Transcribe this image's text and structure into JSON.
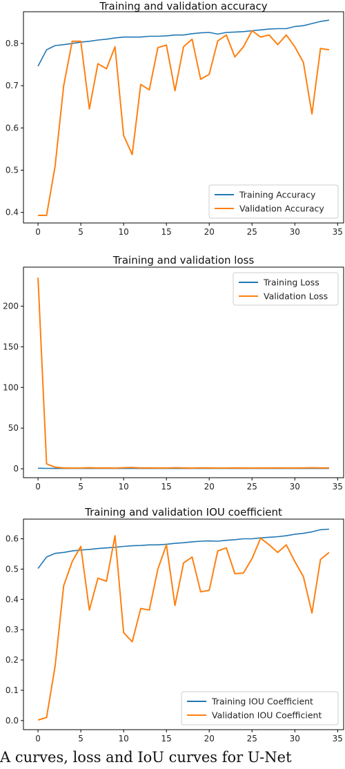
{
  "caption": "A curves, loss and IoU curves for U-Net",
  "chart_data": [
    {
      "type": "line",
      "title": "Training and validation accuracy",
      "xlabel": "",
      "ylabel": "",
      "xlim": [
        -1.7,
        35.7
      ],
      "ylim": [
        0.375,
        0.875
      ],
      "xticks": [
        0,
        5,
        10,
        15,
        20,
        25,
        30,
        35
      ],
      "yticks": [
        0.4,
        0.5,
        0.6,
        0.7,
        0.8
      ],
      "ytick_labels": [
        "0.4",
        "0.5",
        "0.6",
        "0.7",
        "0.8"
      ],
      "legend_position": "lower-right",
      "grid": false,
      "x": [
        0,
        1,
        2,
        3,
        4,
        5,
        6,
        7,
        8,
        9,
        10,
        11,
        12,
        13,
        14,
        15,
        16,
        17,
        18,
        19,
        20,
        21,
        22,
        23,
        24,
        25,
        26,
        27,
        28,
        29,
        30,
        31,
        32,
        33,
        34
      ],
      "series": [
        {
          "name": "Training Accuracy",
          "color": "#1f77b4",
          "values": [
            0.746,
            0.785,
            0.795,
            0.797,
            0.8,
            0.803,
            0.805,
            0.808,
            0.81,
            0.813,
            0.815,
            0.815,
            0.815,
            0.817,
            0.817,
            0.818,
            0.82,
            0.82,
            0.823,
            0.825,
            0.826,
            0.822,
            0.826,
            0.827,
            0.828,
            0.83,
            0.832,
            0.834,
            0.835,
            0.835,
            0.84,
            0.842,
            0.847,
            0.852,
            0.855
          ]
        },
        {
          "name": "Validation Accuracy",
          "color": "#ff7f0e",
          "values": [
            0.393,
            0.393,
            0.51,
            0.7,
            0.805,
            0.805,
            0.645,
            0.752,
            0.74,
            0.792,
            0.582,
            0.537,
            0.703,
            0.69,
            0.79,
            0.796,
            0.688,
            0.792,
            0.81,
            0.715,
            0.727,
            0.806,
            0.82,
            0.768,
            0.792,
            0.83,
            0.815,
            0.82,
            0.797,
            0.82,
            0.792,
            0.755,
            0.633,
            0.788,
            0.785
          ]
        }
      ]
    },
    {
      "type": "line",
      "title": "Training and validation loss",
      "xlabel": "",
      "ylabel": "",
      "xlim": [
        -1.7,
        35.7
      ],
      "ylim": [
        -11,
        248
      ],
      "xticks": [
        0,
        5,
        10,
        15,
        20,
        25,
        30,
        35
      ],
      "yticks": [
        0,
        50,
        100,
        150,
        200
      ],
      "ytick_labels": [
        "0",
        "50",
        "100",
        "150",
        "200"
      ],
      "legend_position": "upper-right",
      "grid": false,
      "x": [
        0,
        1,
        2,
        3,
        4,
        5,
        6,
        7,
        8,
        9,
        10,
        11,
        12,
        13,
        14,
        15,
        16,
        17,
        18,
        19,
        20,
        21,
        22,
        23,
        24,
        25,
        26,
        27,
        28,
        29,
        30,
        31,
        32,
        33,
        34
      ],
      "series": [
        {
          "name": "Training Loss",
          "color": "#1f77b4",
          "values": [
            0.6,
            0.5,
            0.4,
            0.4,
            0.4,
            0.4,
            0.4,
            0.4,
            0.4,
            0.4,
            0.4,
            0.4,
            0.4,
            0.4,
            0.4,
            0.4,
            0.4,
            0.4,
            0.4,
            0.4,
            0.4,
            0.4,
            0.4,
            0.4,
            0.4,
            0.4,
            0.4,
            0.4,
            0.4,
            0.4,
            0.4,
            0.4,
            0.4,
            0.4,
            0.4
          ]
        },
        {
          "name": "Validation Loss",
          "color": "#ff7f0e",
          "values": [
            235,
            6,
            2,
            1,
            0.8,
            0.8,
            1.2,
            0.9,
            1,
            0.8,
            1.2,
            1.5,
            1,
            1,
            0.9,
            0.9,
            1.2,
            1,
            0.8,
            1.1,
            1,
            0.8,
            0.8,
            1,
            0.9,
            0.8,
            0.9,
            0.9,
            1,
            0.9,
            0.9,
            1,
            1.2,
            1,
            1
          ]
        }
      ]
    },
    {
      "type": "line",
      "title": "Training and validation IOU coefficient",
      "xlabel": "",
      "ylabel": "",
      "xlim": [
        -1.7,
        35.7
      ],
      "ylim": [
        -0.03,
        0.665
      ],
      "xticks": [
        0,
        5,
        10,
        15,
        20,
        25,
        30,
        35
      ],
      "yticks": [
        0.0,
        0.1,
        0.2,
        0.3,
        0.4,
        0.5,
        0.6
      ],
      "ytick_labels": [
        "0.0",
        "0.1",
        "0.2",
        "0.3",
        "0.4",
        "0.5",
        "0.6"
      ],
      "legend_position": "lower-right",
      "grid": false,
      "x": [
        0,
        1,
        2,
        3,
        4,
        5,
        6,
        7,
        8,
        9,
        10,
        11,
        12,
        13,
        14,
        15,
        16,
        17,
        18,
        19,
        20,
        21,
        22,
        23,
        24,
        25,
        26,
        27,
        28,
        29,
        30,
        31,
        32,
        33,
        34
      ],
      "series": [
        {
          "name": "Training IOU Coefficient",
          "color": "#1f77b4",
          "values": [
            0.502,
            0.54,
            0.552,
            0.555,
            0.56,
            0.563,
            0.565,
            0.568,
            0.57,
            0.572,
            0.575,
            0.577,
            0.578,
            0.58,
            0.58,
            0.582,
            0.585,
            0.587,
            0.59,
            0.592,
            0.593,
            0.592,
            0.595,
            0.597,
            0.6,
            0.6,
            0.603,
            0.605,
            0.607,
            0.61,
            0.615,
            0.618,
            0.623,
            0.63,
            0.632
          ]
        },
        {
          "name": "Validation IOU Coefficient",
          "color": "#ff7f0e",
          "values": [
            0.002,
            0.01,
            0.18,
            0.445,
            0.525,
            0.575,
            0.365,
            0.47,
            0.46,
            0.61,
            0.29,
            0.26,
            0.37,
            0.365,
            0.5,
            0.58,
            0.38,
            0.52,
            0.54,
            0.425,
            0.43,
            0.56,
            0.57,
            0.485,
            0.487,
            0.535,
            0.602,
            0.58,
            0.555,
            0.58,
            0.525,
            0.475,
            0.355,
            0.532,
            0.555
          ]
        }
      ]
    }
  ]
}
